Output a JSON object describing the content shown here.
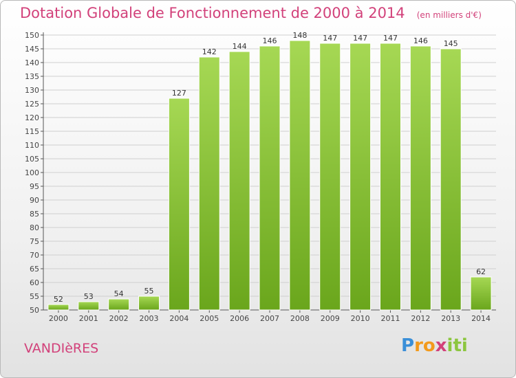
{
  "title": "Dotation Globale de Fonctionnement de 2000 à 2014",
  "unit": "(en milliers d'€)",
  "commune": "VANDIèRES",
  "logo": {
    "letters": [
      "P",
      "r",
      "o",
      "x",
      "i",
      "t",
      "i"
    ],
    "colors": [
      "#3a8fd8",
      "#f39a1c",
      "#f39a1c",
      "#d2417a",
      "#8cc63f",
      "#8cc63f",
      "#8cc63f"
    ]
  },
  "colors": {
    "bar_light": "#a6d854",
    "bar_dark": "#6aa61c",
    "title": "#d2417a",
    "grid": "#cfcfcf"
  },
  "chart_data": {
    "type": "bar",
    "categories": [
      "2000",
      "2001",
      "2002",
      "2003",
      "2004",
      "2005",
      "2006",
      "2007",
      "2008",
      "2009",
      "2010",
      "2011",
      "2012",
      "2013",
      "2014"
    ],
    "values": [
      52,
      53,
      54,
      55,
      127,
      142,
      144,
      146,
      148,
      147,
      147,
      147,
      146,
      145,
      62
    ],
    "ylim": [
      50,
      150
    ],
    "yticks": [
      50,
      55,
      60,
      65,
      70,
      75,
      80,
      85,
      90,
      95,
      100,
      105,
      110,
      115,
      120,
      125,
      130,
      135,
      140,
      145,
      150
    ],
    "grid": true,
    "data_labels": true
  }
}
